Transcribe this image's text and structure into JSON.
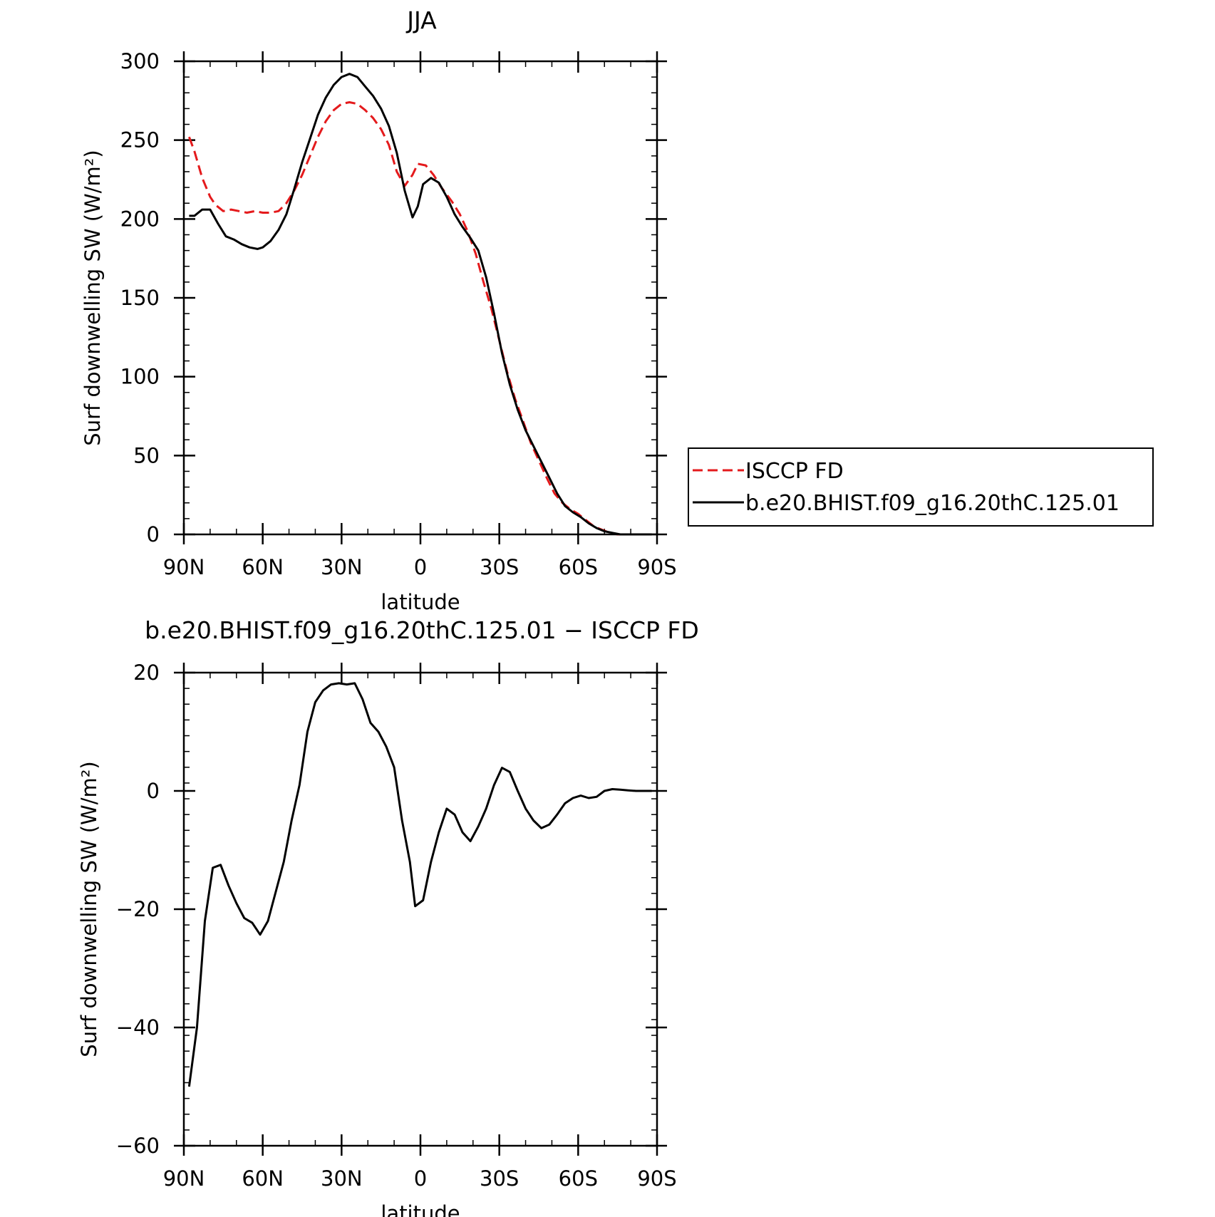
{
  "chart_data": [
    {
      "type": "line",
      "title": "JJA",
      "xlabel": "latitude",
      "ylabel": "Surf downwelling SW (W/m²)",
      "xlim": [
        90,
        -90
      ],
      "ylim": [
        0,
        300
      ],
      "xticks": [
        {
          "value": 90,
          "label": "90N"
        },
        {
          "value": 60,
          "label": "60N"
        },
        {
          "value": 30,
          "label": "30N"
        },
        {
          "value": 0,
          "label": "0"
        },
        {
          "value": -30,
          "label": "30S"
        },
        {
          "value": -60,
          "label": "60S"
        },
        {
          "value": -90,
          "label": "90S"
        }
      ],
      "yticks": [
        {
          "value": 0,
          "label": "0"
        },
        {
          "value": 50,
          "label": "50"
        },
        {
          "value": 100,
          "label": "100"
        },
        {
          "value": 150,
          "label": "150"
        },
        {
          "value": 200,
          "label": "200"
        },
        {
          "value": 250,
          "label": "250"
        },
        {
          "value": 300,
          "label": "300"
        }
      ],
      "legend_position": "right",
      "series": [
        {
          "name": "ISCCP FD",
          "color": "#e41a1c",
          "dash": true,
          "points": [
            [
              88,
              252
            ],
            [
              86,
              243
            ],
            [
              83,
              226
            ],
            [
              80,
              214
            ],
            [
              78,
              209
            ],
            [
              75,
              205
            ],
            [
              72,
              206
            ],
            [
              69,
              205
            ],
            [
              66,
              204
            ],
            [
              63,
              205
            ],
            [
              60,
              204
            ],
            [
              57,
              204
            ],
            [
              54,
              205
            ],
            [
              51,
              210
            ],
            [
              48,
              218
            ],
            [
              45,
              228
            ],
            [
              42,
              240
            ],
            [
              39,
              252
            ],
            [
              36,
              262
            ],
            [
              33,
              269
            ],
            [
              30,
              273
            ],
            [
              27,
              274
            ],
            [
              24,
              273
            ],
            [
              21,
              269
            ],
            [
              18,
              264
            ],
            [
              15,
              257
            ],
            [
              12,
              247
            ],
            [
              9,
              230
            ],
            [
              6,
              221
            ],
            [
              3,
              228
            ],
            [
              1,
              235
            ],
            [
              -2,
              234
            ],
            [
              -5,
              228
            ],
            [
              -8,
              220
            ],
            [
              -12,
              211
            ],
            [
              -15,
              203
            ],
            [
              -18,
              192
            ],
            [
              -21,
              178
            ],
            [
              -24,
              160
            ],
            [
              -27,
              143
            ],
            [
              -30,
              123
            ],
            [
              -33,
              103
            ],
            [
              -36,
              86
            ],
            [
              -39,
              72
            ],
            [
              -42,
              58
            ],
            [
              -45,
              47
            ],
            [
              -48,
              36
            ],
            [
              -51,
              26
            ],
            [
              -54,
              20
            ],
            [
              -57,
              16
            ],
            [
              -60,
              13
            ],
            [
              -63,
              9
            ],
            [
              -66,
              5
            ],
            [
              -69,
              3
            ],
            [
              -72,
              1
            ],
            [
              -75,
              0
            ],
            [
              -78,
              0
            ],
            [
              -81,
              0
            ],
            [
              -84,
              0
            ],
            [
              -87,
              0
            ]
          ]
        },
        {
          "name": "b.e20.BHIST.f09_g16.20thC.125.01",
          "color": "#000000",
          "dash": false,
          "points": [
            [
              88,
              202
            ],
            [
              86,
              202
            ],
            [
              83,
              206
            ],
            [
              80,
              206
            ],
            [
              77,
              197
            ],
            [
              74,
              189
            ],
            [
              71,
              187
            ],
            [
              68,
              184
            ],
            [
              65,
              182
            ],
            [
              62,
              181
            ],
            [
              60,
              182
            ],
            [
              57,
              186
            ],
            [
              54,
              193
            ],
            [
              51,
              203
            ],
            [
              48,
              219
            ],
            [
              45,
              236
            ],
            [
              42,
              251
            ],
            [
              39,
              266
            ],
            [
              36,
              277
            ],
            [
              33,
              285
            ],
            [
              30,
              290
            ],
            [
              27,
              292
            ],
            [
              24,
              290
            ],
            [
              21,
              284
            ],
            [
              18,
              278
            ],
            [
              15,
              270
            ],
            [
              12,
              259
            ],
            [
              9,
              242
            ],
            [
              6,
              218
            ],
            [
              3,
              201
            ],
            [
              1,
              208
            ],
            [
              -1,
              222
            ],
            [
              -4,
              226
            ],
            [
              -7,
              223
            ],
            [
              -10,
              214
            ],
            [
              -13,
              203
            ],
            [
              -16,
              195
            ],
            [
              -19,
              188
            ],
            [
              -22,
              180
            ],
            [
              -25,
              163
            ],
            [
              -28,
              140
            ],
            [
              -31,
              115
            ],
            [
              -34,
              95
            ],
            [
              -37,
              79
            ],
            [
              -40,
              66
            ],
            [
              -43,
              56
            ],
            [
              -46,
              46
            ],
            [
              -49,
              36
            ],
            [
              -52,
              26
            ],
            [
              -55,
              18
            ],
            [
              -58,
              14
            ],
            [
              -61,
              11
            ],
            [
              -64,
              7
            ],
            [
              -67,
              4
            ],
            [
              -70,
              2
            ],
            [
              -73,
              1
            ],
            [
              -76,
              0
            ],
            [
              -79,
              0
            ],
            [
              -82,
              0
            ],
            [
              -85,
              0
            ],
            [
              -88,
              0
            ]
          ]
        }
      ]
    },
    {
      "type": "line",
      "title": "b.e20.BHIST.f09_g16.20thC.125.01 − ISCCP FD",
      "xlabel": "latitude",
      "ylabel": "Surf downwelling SW (W/m²)",
      "xlim": [
        90,
        -90
      ],
      "ylim": [
        -60,
        20
      ],
      "xticks": [
        {
          "value": 90,
          "label": "90N"
        },
        {
          "value": 60,
          "label": "60N"
        },
        {
          "value": 30,
          "label": "30N"
        },
        {
          "value": 0,
          "label": "0"
        },
        {
          "value": -30,
          "label": "30S"
        },
        {
          "value": -60,
          "label": "60S"
        },
        {
          "value": -90,
          "label": "90S"
        }
      ],
      "yticks": [
        {
          "value": -60,
          "label": "−60"
        },
        {
          "value": -40,
          "label": "−40"
        },
        {
          "value": -20,
          "label": "−20"
        },
        {
          "value": 0,
          "label": "0"
        },
        {
          "value": 20,
          "label": "20"
        }
      ],
      "series": [
        {
          "color": "#000000",
          "dash": false,
          "points": [
            [
              88,
              -50
            ],
            [
              85,
              -40
            ],
            [
              82,
              -22
            ],
            [
              79,
              -13
            ],
            [
              76,
              -12.5
            ],
            [
              73,
              -16
            ],
            [
              70,
              -19
            ],
            [
              67,
              -21.5
            ],
            [
              64,
              -22.3
            ],
            [
              61,
              -24.3
            ],
            [
              58,
              -22
            ],
            [
              55,
              -17
            ],
            [
              52,
              -12
            ],
            [
              49,
              -5
            ],
            [
              46,
              1
            ],
            [
              43,
              10
            ],
            [
              40,
              15
            ],
            [
              37,
              17
            ],
            [
              34,
              18
            ],
            [
              31,
              18.2
            ],
            [
              28,
              18
            ],
            [
              25,
              18.2
            ],
            [
              22,
              15.5
            ],
            [
              19,
              11.5
            ],
            [
              16,
              10
            ],
            [
              13,
              7.5
            ],
            [
              10,
              4
            ],
            [
              7,
              -5
            ],
            [
              4,
              -12
            ],
            [
              2,
              -19.5
            ],
            [
              -1,
              -18.5
            ],
            [
              -4,
              -12
            ],
            [
              -7,
              -7
            ],
            [
              -10,
              -3
            ],
            [
              -13,
              -4
            ],
            [
              -16,
              -7
            ],
            [
              -19,
              -8.5
            ],
            [
              -22,
              -6
            ],
            [
              -25,
              -3
            ],
            [
              -28,
              1
            ],
            [
              -31,
              3.9
            ],
            [
              -34,
              3.2
            ],
            [
              -37,
              0
            ],
            [
              -40,
              -3
            ],
            [
              -43,
              -5
            ],
            [
              -46,
              -6.3
            ],
            [
              -49,
              -5.7
            ],
            [
              -52,
              -4
            ],
            [
              -55,
              -2.1
            ],
            [
              -58,
              -1.2
            ],
            [
              -61,
              -0.8
            ],
            [
              -64,
              -1.2
            ],
            [
              -67,
              -1
            ],
            [
              -70,
              0
            ],
            [
              -73,
              0.3
            ],
            [
              -76,
              0.2
            ],
            [
              -79,
              0.1
            ],
            [
              -82,
              0
            ],
            [
              -85,
              0
            ],
            [
              -88,
              0
            ]
          ]
        }
      ]
    }
  ]
}
